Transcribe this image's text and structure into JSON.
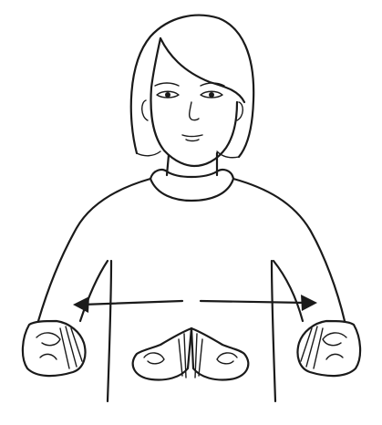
{
  "illustration": {
    "subject": "",
    "line_color": "#1a1a1a",
    "background_color": "#ffffff",
    "motion": "hands-move-apart-horizontally",
    "arrows": [
      "left-arrow",
      "right-arrow"
    ]
  }
}
